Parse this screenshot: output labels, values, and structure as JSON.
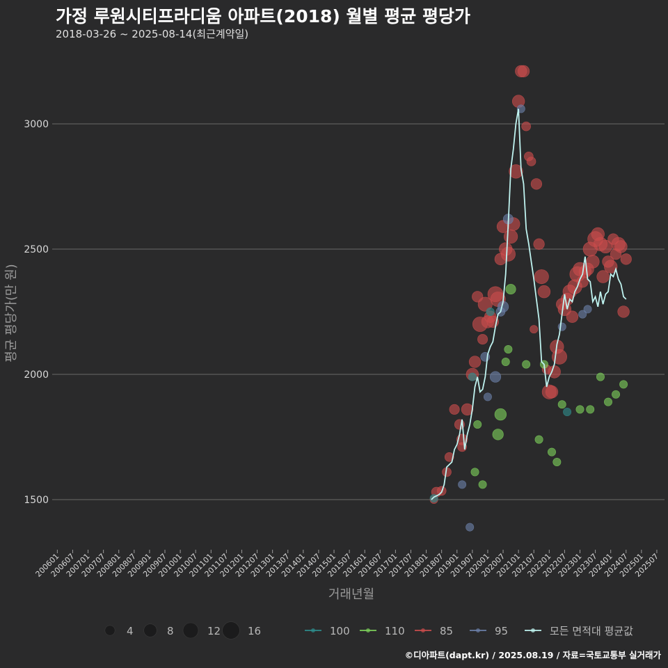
{
  "header": {
    "title": "가정 루원시티프라디움 아파트(2018) 월별 평균 평당가",
    "subtitle": "2018-03-26 ~ 2025-08-14(최근계약일)"
  },
  "footer": {
    "credit": "©디아파트(dapt.kr) / 2025.08.19 / 자료=국토교통부 실거래가"
  },
  "chart_data": {
    "type": "scatter",
    "xlabel": "거래년월",
    "ylabel": "평균 평당가(만 원)",
    "ylim": [
      1300,
      3300
    ],
    "yticks": [
      1500,
      2000,
      2500,
      3000
    ],
    "xticks": [
      "200601",
      "200607",
      "200701",
      "200707",
      "200801",
      "200807",
      "200901",
      "200907",
      "201001",
      "201007",
      "201101",
      "201107",
      "201201",
      "201207",
      "201301",
      "201307",
      "201401",
      "201407",
      "201501",
      "201507",
      "201601",
      "201607",
      "201701",
      "201707",
      "201801",
      "201807",
      "201901",
      "201907",
      "202001",
      "202007",
      "202101",
      "202107",
      "202201",
      "202207",
      "202301",
      "202307",
      "202401",
      "202407",
      "202501",
      "202507"
    ],
    "grid": true,
    "legend_position": "bottom",
    "size_legend": {
      "values": [
        4,
        8,
        12,
        16
      ]
    },
    "colors": {
      "100": "#2e8b8b",
      "110": "#7ccf5a",
      "85": "#c94c4c",
      "95": "#6b7fa8",
      "avg": "#bff3f0"
    },
    "series": [
      {
        "name": "85",
        "key": "85",
        "points": [
          [
            "2018-04",
            1500,
            2
          ],
          [
            "2018-05",
            1530,
            4
          ],
          [
            "2018-07",
            1535,
            3
          ],
          [
            "2018-09",
            1610,
            3
          ],
          [
            "2018-10",
            1670,
            3
          ],
          [
            "2018-12",
            1860,
            4
          ],
          [
            "2019-02",
            1800,
            4
          ],
          [
            "2019-03",
            1740,
            5
          ],
          [
            "2019-03",
            1710,
            3
          ],
          [
            "2019-05",
            1860,
            6
          ],
          [
            "2019-07",
            2000,
            7
          ],
          [
            "2019-08",
            2050,
            6
          ],
          [
            "2019-09",
            2310,
            5
          ],
          [
            "2019-10",
            2200,
            11
          ],
          [
            "2019-11",
            2140,
            4
          ],
          [
            "2019-12",
            2280,
            10
          ],
          [
            "2020-01",
            2210,
            7
          ],
          [
            "2020-02",
            2230,
            6
          ],
          [
            "2020-03",
            2210,
            6
          ],
          [
            "2020-04",
            2320,
            12
          ],
          [
            "2020-05",
            2300,
            11
          ],
          [
            "2020-06",
            2460,
            6
          ],
          [
            "2020-07",
            2590,
            7
          ],
          [
            "2020-08",
            2500,
            8
          ],
          [
            "2020-09",
            2480,
            10
          ],
          [
            "2020-10",
            2550,
            9
          ],
          [
            "2020-11",
            2600,
            8
          ],
          [
            "2020-12",
            2810,
            9
          ],
          [
            "2021-01",
            3090,
            7
          ],
          [
            "2021-02",
            3210,
            6
          ],
          [
            "2021-03",
            3210,
            6
          ],
          [
            "2021-04",
            2990,
            3
          ],
          [
            "2021-05",
            2870,
            3
          ],
          [
            "2021-06",
            2850,
            3
          ],
          [
            "2021-07",
            2180,
            2
          ],
          [
            "2021-08",
            2760,
            5
          ],
          [
            "2021-09",
            2520,
            5
          ],
          [
            "2021-10",
            2390,
            10
          ],
          [
            "2021-11",
            2330,
            7
          ],
          [
            "2021-12",
            2020,
            3
          ],
          [
            "2022-01",
            1930,
            10
          ],
          [
            "2022-02",
            1930,
            7
          ],
          [
            "2022-03",
            2010,
            7
          ],
          [
            "2022-04",
            2110,
            9
          ],
          [
            "2022-05",
            2070,
            11
          ],
          [
            "2022-06",
            2280,
            6
          ],
          [
            "2022-07",
            2260,
            8
          ],
          [
            "2022-08",
            2300,
            7
          ],
          [
            "2022-09",
            2330,
            9
          ],
          [
            "2022-10",
            2230,
            6
          ],
          [
            "2022-11",
            2350,
            10
          ],
          [
            "2022-12",
            2400,
            12
          ],
          [
            "2023-01",
            2420,
            9
          ],
          [
            "2023-02",
            2370,
            6
          ],
          [
            "2023-03",
            2410,
            7
          ],
          [
            "2023-04",
            2420,
            7
          ],
          [
            "2023-05",
            2500,
            10
          ],
          [
            "2023-06",
            2450,
            8
          ],
          [
            "2023-07",
            2540,
            12
          ],
          [
            "2023-08",
            2560,
            8
          ],
          [
            "2023-09",
            2520,
            9
          ],
          [
            "2023-10",
            2390,
            7
          ],
          [
            "2023-11",
            2510,
            8
          ],
          [
            "2023-12",
            2450,
            6
          ],
          [
            "2024-01",
            2430,
            8
          ],
          [
            "2024-02",
            2540,
            5
          ],
          [
            "2024-03",
            2480,
            5
          ],
          [
            "2024-04",
            2520,
            9
          ],
          [
            "2024-05",
            2510,
            7
          ],
          [
            "2024-06",
            2250,
            6
          ],
          [
            "2024-07",
            2460,
            5
          ]
        ]
      },
      {
        "name": "95",
        "key": "95",
        "points": [
          [
            "2019-03",
            1560,
            2
          ],
          [
            "2019-06",
            1390,
            2
          ],
          [
            "2019-12",
            2070,
            3
          ],
          [
            "2020-01",
            1910,
            2
          ],
          [
            "2020-04",
            1990,
            5
          ],
          [
            "2020-06",
            2250,
            3
          ],
          [
            "2020-07",
            2270,
            5
          ],
          [
            "2020-09",
            2620,
            4
          ],
          [
            "2021-02",
            3060,
            2
          ],
          [
            "2022-06",
            2190,
            2
          ],
          [
            "2023-02",
            2240,
            2
          ],
          [
            "2023-04",
            2260,
            2
          ]
        ]
      },
      {
        "name": "110",
        "key": "110",
        "points": [
          [
            "2019-08",
            1610,
            2
          ],
          [
            "2019-09",
            1800,
            2
          ],
          [
            "2019-11",
            1560,
            2
          ],
          [
            "2020-05",
            1760,
            5
          ],
          [
            "2020-06",
            1840,
            6
          ],
          [
            "2020-08",
            2050,
            2
          ],
          [
            "2020-09",
            2100,
            2
          ],
          [
            "2020-10",
            2340,
            4
          ],
          [
            "2021-04",
            2040,
            2
          ],
          [
            "2021-09",
            1740,
            2
          ],
          [
            "2021-11",
            2040,
            2
          ],
          [
            "2022-02",
            1690,
            2
          ],
          [
            "2022-04",
            1650,
            2
          ],
          [
            "2022-06",
            1880,
            2
          ],
          [
            "2023-01",
            1860,
            2
          ],
          [
            "2023-05",
            1860,
            2
          ],
          [
            "2023-09",
            1990,
            2
          ],
          [
            "2023-12",
            1890,
            2
          ],
          [
            "2024-03",
            1920,
            2
          ],
          [
            "2024-06",
            1960,
            2
          ]
        ]
      },
      {
        "name": "100",
        "key": "100",
        "points": [
          [
            "2018-04",
            1505,
            2
          ],
          [
            "2019-07",
            1990,
            2
          ],
          [
            "2020-02",
            2250,
            2
          ],
          [
            "2022-08",
            1850,
            2
          ]
        ]
      }
    ],
    "average_series": {
      "name": "모든 면적대 평균값",
      "points": [
        [
          "2018-03",
          1500
        ],
        [
          "2018-04",
          1510
        ],
        [
          "2018-05",
          1515
        ],
        [
          "2018-06",
          1520
        ],
        [
          "2018-07",
          1530
        ],
        [
          "2018-08",
          1560
        ],
        [
          "2018-09",
          1630
        ],
        [
          "2018-10",
          1640
        ],
        [
          "2018-11",
          1650
        ],
        [
          "2018-12",
          1700
        ],
        [
          "2019-01",
          1720
        ],
        [
          "2019-02",
          1760
        ],
        [
          "2019-03",
          1820
        ],
        [
          "2019-04",
          1700
        ],
        [
          "2019-05",
          1760
        ],
        [
          "2019-06",
          1800
        ],
        [
          "2019-07",
          1860
        ],
        [
          "2019-08",
          1950
        ],
        [
          "2019-09",
          1990
        ],
        [
          "2019-10",
          1930
        ],
        [
          "2019-11",
          1940
        ],
        [
          "2019-12",
          1990
        ],
        [
          "2020-01",
          2080
        ],
        [
          "2020-02",
          2110
        ],
        [
          "2020-03",
          2130
        ],
        [
          "2020-04",
          2190
        ],
        [
          "2020-05",
          2240
        ],
        [
          "2020-06",
          2250
        ],
        [
          "2020-07",
          2290
        ],
        [
          "2020-08",
          2400
        ],
        [
          "2020-09",
          2600
        ],
        [
          "2020-10",
          2820
        ],
        [
          "2020-11",
          2900
        ],
        [
          "2020-12",
          3000
        ],
        [
          "2021-01",
          3060
        ],
        [
          "2021-02",
          2820
        ],
        [
          "2021-03",
          2760
        ],
        [
          "2021-04",
          2580
        ],
        [
          "2021-05",
          2520
        ],
        [
          "2021-06",
          2450
        ],
        [
          "2021-07",
          2380
        ],
        [
          "2021-08",
          2300
        ],
        [
          "2021-09",
          2220
        ],
        [
          "2021-10",
          2050
        ],
        [
          "2021-11",
          2040
        ],
        [
          "2021-12",
          1950
        ],
        [
          "2022-01",
          1990
        ],
        [
          "2022-02",
          2010
        ],
        [
          "2022-03",
          2040
        ],
        [
          "2022-04",
          2120
        ],
        [
          "2022-05",
          2160
        ],
        [
          "2022-06",
          2240
        ],
        [
          "2022-07",
          2320
        ],
        [
          "2022-08",
          2260
        ],
        [
          "2022-09",
          2300
        ],
        [
          "2022-10",
          2290
        ],
        [
          "2022-11",
          2330
        ],
        [
          "2022-12",
          2350
        ],
        [
          "2023-01",
          2380
        ],
        [
          "2023-02",
          2400
        ],
        [
          "2023-03",
          2470
        ],
        [
          "2023-04",
          2380
        ],
        [
          "2023-05",
          2370
        ],
        [
          "2023-06",
          2290
        ],
        [
          "2023-07",
          2310
        ],
        [
          "2023-08",
          2270
        ],
        [
          "2023-09",
          2330
        ],
        [
          "2023-10",
          2280
        ],
        [
          "2023-11",
          2320
        ],
        [
          "2023-12",
          2330
        ],
        [
          "2024-01",
          2400
        ],
        [
          "2024-02",
          2390
        ],
        [
          "2024-03",
          2420
        ],
        [
          "2024-04",
          2380
        ],
        [
          "2024-05",
          2360
        ],
        [
          "2024-06",
          2310
        ],
        [
          "2024-07",
          2300
        ]
      ]
    },
    "x_range": [
      "2005-11",
      "2025-10"
    ]
  }
}
